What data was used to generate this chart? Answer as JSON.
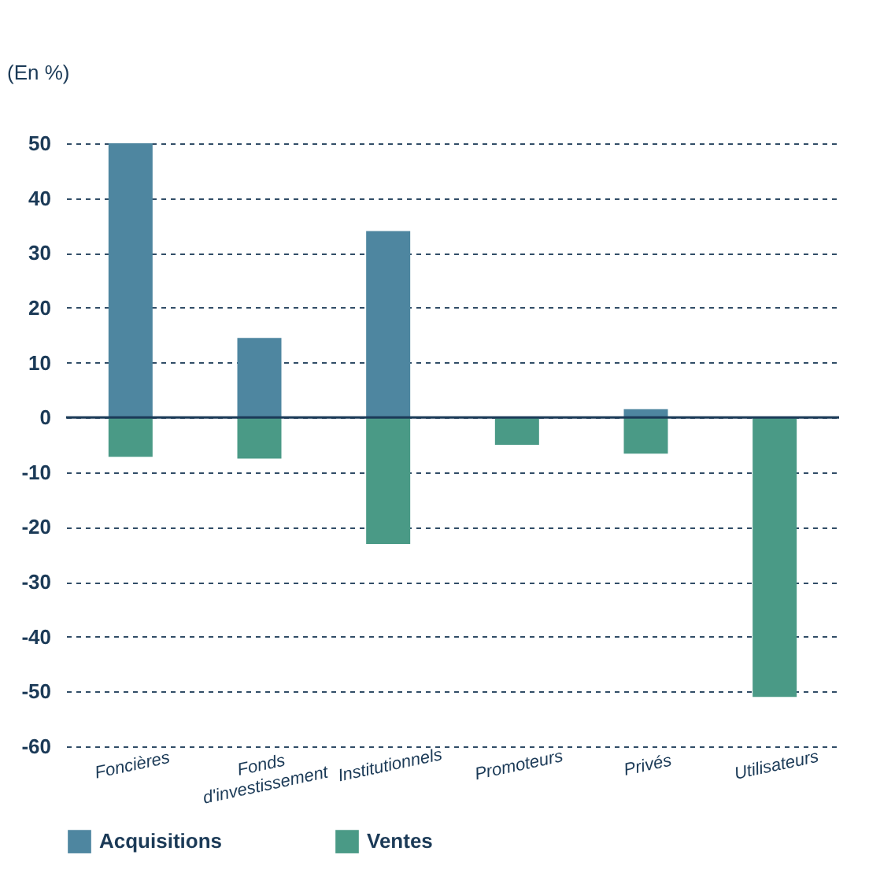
{
  "chart_data": {
    "type": "bar",
    "ylabel": "(En %)",
    "categories": [
      "Foncières",
      "Fonds d'investissement",
      "Institutionnels",
      "Promoteurs",
      "Privés",
      "Utilisateurs"
    ],
    "series": [
      {
        "name": "Acquisitions",
        "color": "#4e86a0",
        "values": [
          50,
          14.5,
          34,
          null,
          1.5,
          null
        ]
      },
      {
        "name": "Ventes",
        "color": "#4a9a86",
        "values": [
          -7.2,
          -7.5,
          -23.1,
          -5,
          -6.6,
          -51
        ]
      }
    ],
    "ylim": [
      -60,
      50
    ],
    "yticks": [
      -60,
      -50,
      -40,
      -30,
      -20,
      -10,
      0,
      10,
      20,
      30,
      40,
      50
    ],
    "ref_lines": [
      {
        "axis": "y",
        "value": 0,
        "color": "#1b3a57"
      }
    ],
    "stacked": true,
    "grid": "y",
    "legend": "bottom"
  }
}
